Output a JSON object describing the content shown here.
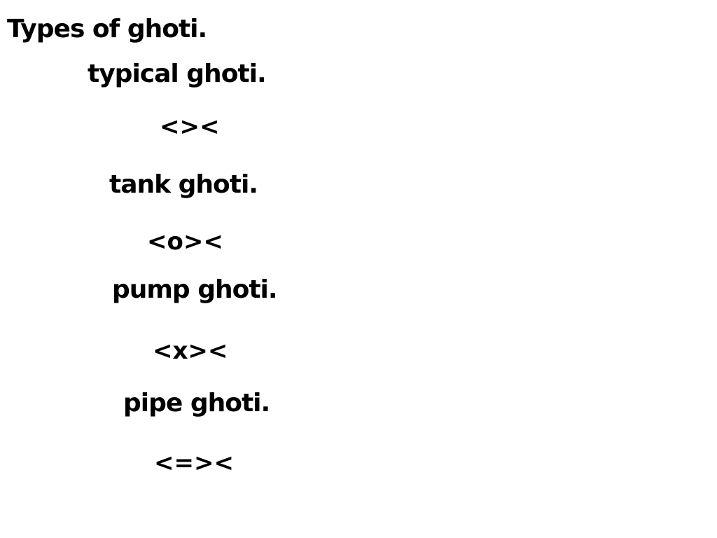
{
  "title": "Types of ghoti.",
  "items": [
    {
      "label": "typical ghoti.",
      "fish": "<><"
    },
    {
      "label": "tank ghoti.",
      "fish": "<o><"
    },
    {
      "label": "pump ghoti.",
      "fish": "<x><"
    },
    {
      "label": "pipe ghoti.",
      "fish": "<=><"
    }
  ]
}
